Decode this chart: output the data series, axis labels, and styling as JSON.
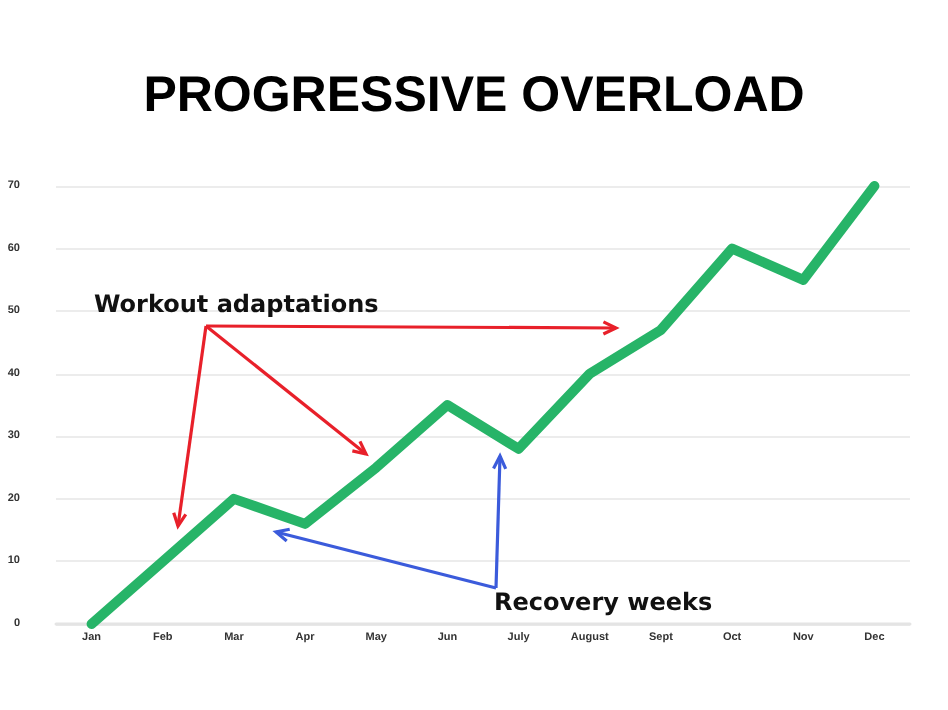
{
  "chart_data": {
    "type": "line",
    "title": "PROGRESSIVE OVERLOAD",
    "categories": [
      "Jan",
      "Feb",
      "Mar",
      "Apr",
      "May",
      "Jun",
      "July",
      "August",
      "Sept",
      "Oct",
      "Nov",
      "Dec"
    ],
    "series": [
      {
        "color": "#27b468",
        "values": [
          0,
          10,
          20,
          16,
          25,
          35,
          28,
          40,
          47,
          60,
          55,
          70
        ]
      }
    ],
    "ylim": [
      0,
      70
    ],
    "yticks": [
      0,
      10,
      20,
      30,
      40,
      50,
      60,
      70
    ],
    "grid": "y",
    "marker": "none",
    "line_style": "solid",
    "annotations": [
      "Workout adaptations",
      "Recovery weeks"
    ]
  }
}
